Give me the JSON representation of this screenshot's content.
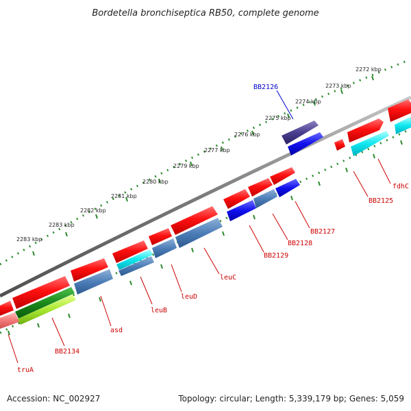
{
  "title": "Bordetella bronchiseptica RB50, complete genome",
  "footer": {
    "accession": "Accession: NC_002927",
    "summary": "Topology: circular; Length: 5,339,179 bp; Genes: 5,059"
  },
  "colors": {
    "backbone": "#808080",
    "tick_dots": "#2e8b2e",
    "label_red": "#cc0000",
    "label_blue": "#0000cc"
  },
  "scale_ticks": [
    {
      "label": "2272 kbp",
      "kbp": 2272
    },
    {
      "label": "2273 kbp",
      "kbp": 2273
    },
    {
      "label": "2274 kbp",
      "kbp": 2274
    },
    {
      "label": "2275 kbp",
      "kbp": 2275
    },
    {
      "label": "2276 kbp",
      "kbp": 2276
    },
    {
      "label": "2277 kbp",
      "kbp": 2277
    },
    {
      "label": "2279 kbp",
      "kbp": 2279
    },
    {
      "label": "2280 kbp",
      "kbp": 2280
    },
    {
      "label": "2281 kbp",
      "kbp": 2281
    },
    {
      "label": "2282 kbp",
      "kbp": 2282
    },
    {
      "label": "2283 kbp",
      "kbp": 2283
    }
  ],
  "gene_labels": [
    {
      "name": "BB2126",
      "color": "blue"
    },
    {
      "name": "fdhC",
      "color": "red"
    },
    {
      "name": "BB2125",
      "color": "red"
    },
    {
      "name": "BB2127",
      "color": "red"
    },
    {
      "name": "BB2128",
      "color": "red"
    },
    {
      "name": "BB2129",
      "color": "red"
    },
    {
      "name": "leuC",
      "color": "red"
    },
    {
      "name": "leuD",
      "color": "red"
    },
    {
      "name": "leuB",
      "color": "red"
    },
    {
      "name": "asd",
      "color": "red"
    },
    {
      "name": "BB2134",
      "color": "red"
    },
    {
      "name": "truA",
      "color": "red"
    }
  ]
}
